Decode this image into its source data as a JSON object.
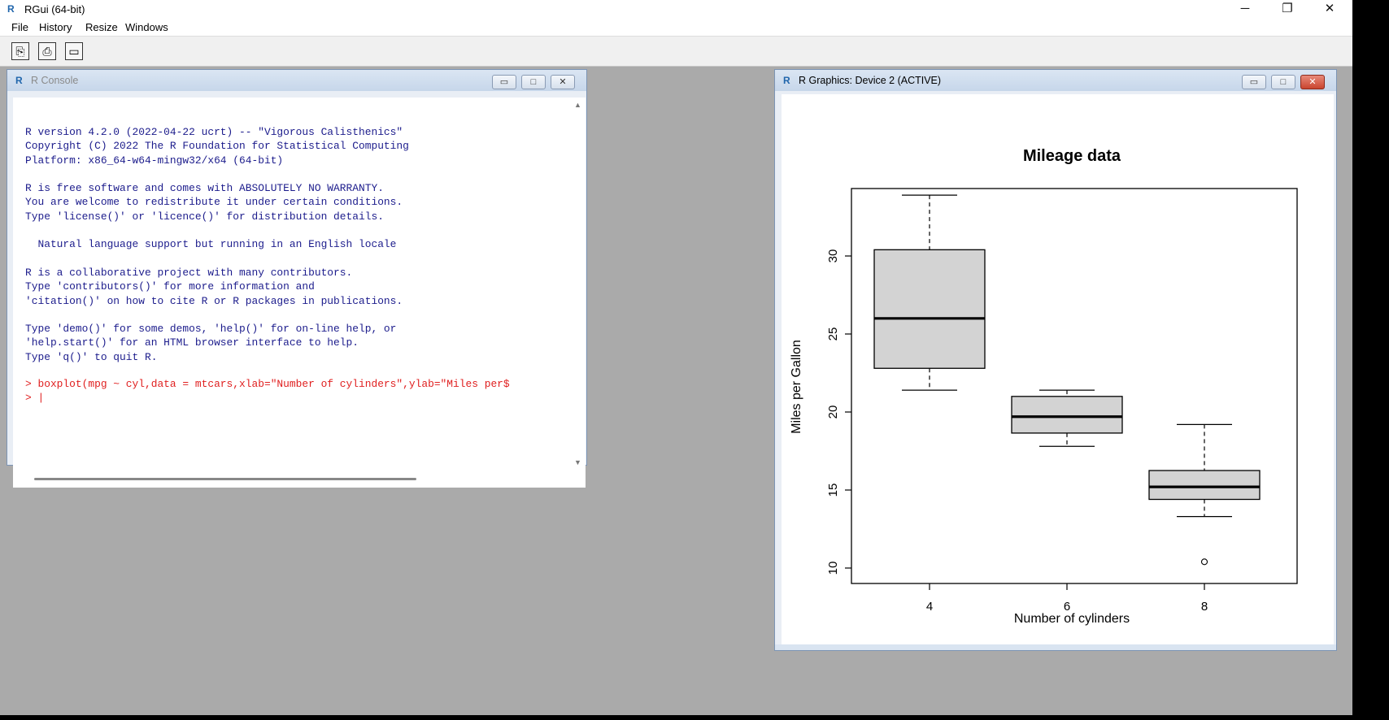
{
  "app": {
    "title": "RGui (64-bit)",
    "logo": "R"
  },
  "window_controls": {
    "minimize": "─",
    "maximize": "❐",
    "close": "✕"
  },
  "menu": [
    "File",
    "History",
    "Resize",
    "Windows"
  ],
  "toolbar": [
    {
      "name": "open-script-icon",
      "glyph": "⎘"
    },
    {
      "name": "print-icon",
      "glyph": "⎙"
    },
    {
      "name": "console-window-icon",
      "glyph": "▭"
    }
  ],
  "console": {
    "title": "R Console",
    "banner": "R version 4.2.0 (2022-04-22 ucrt) -- \"Vigorous Calisthenics\"\nCopyright (C) 2022 The R Foundation for Statistical Computing\nPlatform: x86_64-w64-mingw32/x64 (64-bit)\n\nR is free software and comes with ABSOLUTELY NO WARRANTY.\nYou are welcome to redistribute it under certain conditions.\nType 'license()' or 'licence()' for distribution details.\n\n  Natural language support but running in an English locale\n\nR is a collaborative project with many contributors.\nType 'contributors()' for more information and\n'citation()' on how to cite R or R packages in publications.\n\nType 'demo()' for some demos, 'help()' for on-line help, or\n'help.start()' for an HTML browser interface to help.\nType 'q()' to quit R.",
    "command": "> boxplot(mpg ~ cyl,data = mtcars,xlab=\"Number of cylinders\",ylab=\"Miles per$",
    "prompt": "> |"
  },
  "graphics": {
    "title": "R Graphics: Device 2 (ACTIVE)"
  },
  "chart_data": {
    "type": "boxplot",
    "title": "Mileage data",
    "xlabel": "Number of cylinders",
    "ylabel": "Miles per Gallon",
    "categories": [
      "4",
      "6",
      "8"
    ],
    "yticks": [
      10,
      15,
      20,
      25,
      30
    ],
    "ylim": [
      9.5,
      35
    ],
    "boxes": [
      {
        "category": "4",
        "min": 21.4,
        "q1": 22.8,
        "median": 26.0,
        "q3": 30.4,
        "max": 33.9,
        "outliers": []
      },
      {
        "category": "6",
        "min": 17.8,
        "q1": 18.65,
        "median": 19.7,
        "q3": 21.0,
        "max": 21.4,
        "outliers": []
      },
      {
        "category": "8",
        "min": 13.3,
        "q1": 14.4,
        "median": 15.2,
        "q3": 16.25,
        "max": 19.2,
        "outliers": [
          10.4
        ]
      }
    ],
    "box_fill": "#d3d3d3",
    "grid": false
  }
}
